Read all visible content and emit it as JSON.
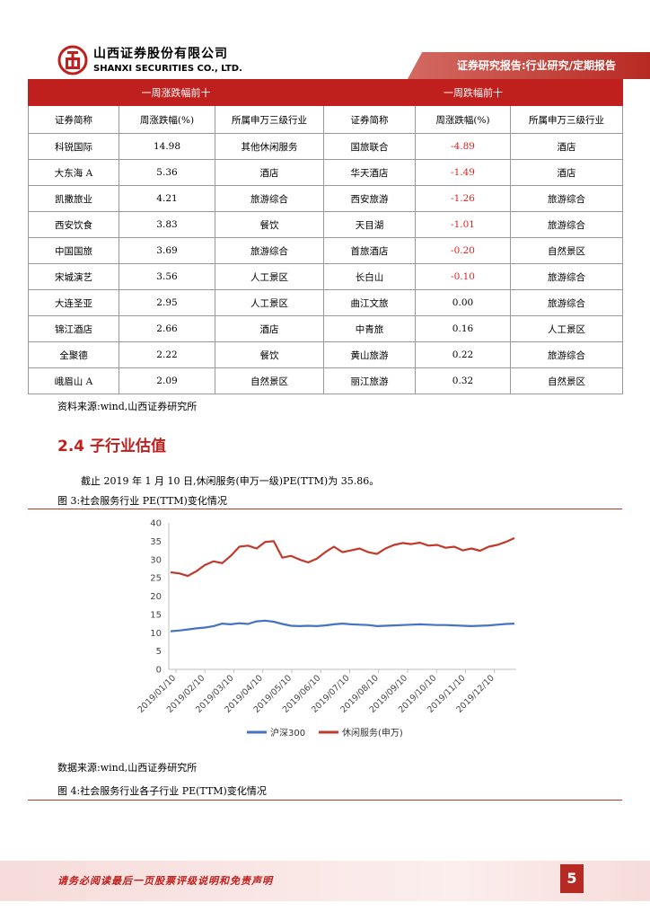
{
  "header": {
    "company_cn": "山西证券股份有限公司",
    "company_en": "SHANXI SECURITIES CO., LTD.",
    "report_type": "证券研究报告:行业研究/定期报告"
  },
  "table": {
    "gain_title": "一周涨跌幅前十",
    "loss_title": "一周跌幅前十",
    "columns": [
      "证券简称",
      "周涨跌幅(%)",
      "所属申万三级行业",
      "证券简称",
      "周涨跌幅(%)",
      "所属申万三级行业"
    ],
    "rows": [
      [
        "科锐国际",
        "14.98",
        "其他休闲服务",
        "国旅联合",
        "-4.89",
        "酒店"
      ],
      [
        "大东海 A",
        "5.36",
        "酒店",
        "华天酒店",
        "-1.49",
        "酒店"
      ],
      [
        "凯撒旅业",
        "4.21",
        "旅游综合",
        "西安旅游",
        "-1.26",
        "旅游综合"
      ],
      [
        "西安饮食",
        "3.83",
        "餐饮",
        "天目湖",
        "-1.01",
        "旅游综合"
      ],
      [
        "中国国旅",
        "3.69",
        "旅游综合",
        "首旅酒店",
        "-0.20",
        "自然景区"
      ],
      [
        "宋城演艺",
        "3.56",
        "人工景区",
        "长白山",
        "-0.10",
        "旅游综合"
      ],
      [
        "大连圣亚",
        "2.95",
        "人工景区",
        "曲江文旅",
        "0.00",
        "旅游综合"
      ],
      [
        "锦江酒店",
        "2.66",
        "酒店",
        "中青旅",
        "0.16",
        "人工景区"
      ],
      [
        "全聚德",
        "2.22",
        "餐饮",
        "黄山旅游",
        "0.22",
        "旅游综合"
      ],
      [
        "峨眉山 A",
        "2.09",
        "自然景区",
        "丽江旅游",
        "0.32",
        "自然景区"
      ]
    ]
  },
  "source1": "资料来源:wind,山西证券研究所",
  "section_title": "2.4 子行业估值",
  "paragraph": "截止 2019 年 1 月 10 日,休闲服务(申万一级)PE(TTM)为 35.86。",
  "fig3_caption": "图 3:社会服务行业 PE(TTM)变化情况",
  "source2": "数据来源:wind,山西证券研究所",
  "fig4_caption": "图 4:社会服务行业各子行业 PE(TTM)变化情况",
  "footer": {
    "disclaimer": "请务必阅读最后一页股票评级说明和免责声明",
    "page": "5"
  },
  "colors": {
    "accent": "#c0201d",
    "series_blue": "#4472c4",
    "series_red": "#c0392b"
  },
  "chart_data": {
    "type": "line",
    "ylim": [
      0,
      40
    ],
    "yticks": [
      "0",
      "5",
      "10",
      "15",
      "20",
      "25",
      "30",
      "35",
      "40"
    ],
    "xticks": [
      "2019/01/10",
      "2019/02/10",
      "2019/03/10",
      "2019/04/10",
      "2019/05/10",
      "2019/06/10",
      "2019/07/10",
      "2019/08/10",
      "2019/09/10",
      "2019/10/10",
      "2019/11/10",
      "2019/12/10"
    ],
    "series": [
      {
        "name": "沪深300",
        "color": "#4472c4",
        "values": [
          10.4,
          10.6,
          10.9,
          11.2,
          11.4,
          11.8,
          12.5,
          12.3,
          12.6,
          12.4,
          13.1,
          13.3,
          13.0,
          12.4,
          11.9,
          11.8,
          11.9,
          11.8,
          12.0,
          12.3,
          12.5,
          12.3,
          12.2,
          12.1,
          11.8,
          11.9,
          12.0,
          12.1,
          12.2,
          12.3,
          12.2,
          12.1,
          12.1,
          12.0,
          11.9,
          11.8,
          11.9,
          12.0,
          12.2,
          12.4,
          12.5
        ]
      },
      {
        "name": "休闲服务(申万)",
        "color": "#c0392b",
        "values": [
          26.5,
          26.2,
          25.5,
          26.8,
          28.5,
          29.5,
          29.0,
          31.0,
          33.5,
          33.8,
          33.0,
          34.8,
          35.0,
          30.5,
          31.0,
          30.0,
          29.2,
          30.2,
          32.0,
          33.5,
          32.0,
          32.5,
          33.0,
          32.0,
          31.5,
          33.0,
          34.0,
          34.5,
          34.2,
          34.6,
          33.8,
          34.0,
          33.2,
          33.5,
          32.5,
          33.0,
          32.4,
          33.5,
          34.0,
          34.8,
          35.86
        ]
      }
    ]
  }
}
